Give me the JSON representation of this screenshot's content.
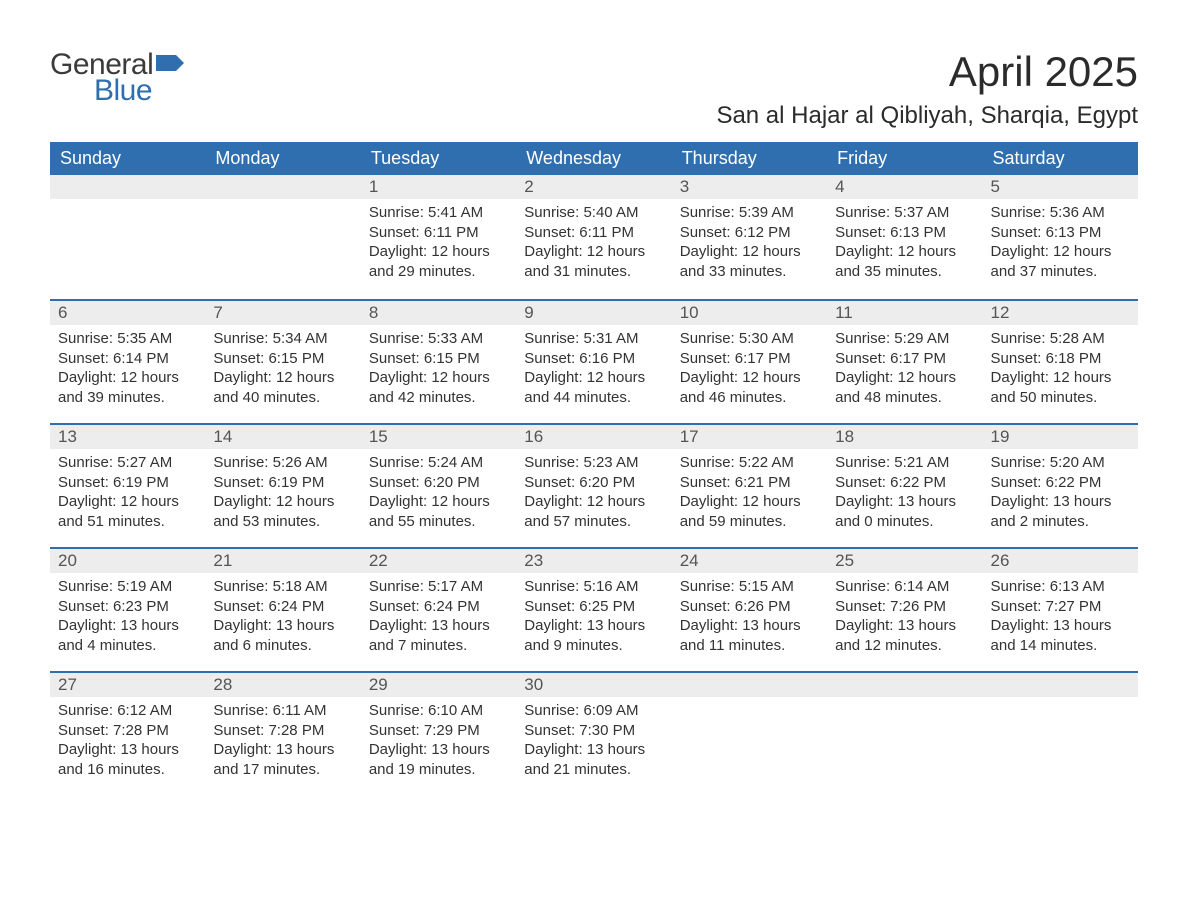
{
  "brand": {
    "part1": "General",
    "part2": "Blue"
  },
  "title": "April 2025",
  "location": "San al Hajar al Qibliyah, Sharqia, Egypt",
  "colors": {
    "header_bg": "#2f6fb0",
    "header_text": "#ffffff",
    "date_row_bg": "#ededed",
    "week_border": "#2f6fb0",
    "text": "#333333",
    "logo_blue": "#2f6fb0",
    "logo_gray": "#3b3b3b"
  },
  "typography": {
    "title_fontsize": 42,
    "location_fontsize": 24,
    "header_fontsize": 18,
    "date_fontsize": 17,
    "body_fontsize": 15
  },
  "day_headers": [
    "Sunday",
    "Monday",
    "Tuesday",
    "Wednesday",
    "Thursday",
    "Friday",
    "Saturday"
  ],
  "weeks": [
    [
      {
        "date": "",
        "sunrise": "",
        "sunset": "",
        "daylight": ""
      },
      {
        "date": "",
        "sunrise": "",
        "sunset": "",
        "daylight": ""
      },
      {
        "date": "1",
        "sunrise": "Sunrise: 5:41 AM",
        "sunset": "Sunset: 6:11 PM",
        "daylight": "Daylight: 12 hours and 29 minutes."
      },
      {
        "date": "2",
        "sunrise": "Sunrise: 5:40 AM",
        "sunset": "Sunset: 6:11 PM",
        "daylight": "Daylight: 12 hours and 31 minutes."
      },
      {
        "date": "3",
        "sunrise": "Sunrise: 5:39 AM",
        "sunset": "Sunset: 6:12 PM",
        "daylight": "Daylight: 12 hours and 33 minutes."
      },
      {
        "date": "4",
        "sunrise": "Sunrise: 5:37 AM",
        "sunset": "Sunset: 6:13 PM",
        "daylight": "Daylight: 12 hours and 35 minutes."
      },
      {
        "date": "5",
        "sunrise": "Sunrise: 5:36 AM",
        "sunset": "Sunset: 6:13 PM",
        "daylight": "Daylight: 12 hours and 37 minutes."
      }
    ],
    [
      {
        "date": "6",
        "sunrise": "Sunrise: 5:35 AM",
        "sunset": "Sunset: 6:14 PM",
        "daylight": "Daylight: 12 hours and 39 minutes."
      },
      {
        "date": "7",
        "sunrise": "Sunrise: 5:34 AM",
        "sunset": "Sunset: 6:15 PM",
        "daylight": "Daylight: 12 hours and 40 minutes."
      },
      {
        "date": "8",
        "sunrise": "Sunrise: 5:33 AM",
        "sunset": "Sunset: 6:15 PM",
        "daylight": "Daylight: 12 hours and 42 minutes."
      },
      {
        "date": "9",
        "sunrise": "Sunrise: 5:31 AM",
        "sunset": "Sunset: 6:16 PM",
        "daylight": "Daylight: 12 hours and 44 minutes."
      },
      {
        "date": "10",
        "sunrise": "Sunrise: 5:30 AM",
        "sunset": "Sunset: 6:17 PM",
        "daylight": "Daylight: 12 hours and 46 minutes."
      },
      {
        "date": "11",
        "sunrise": "Sunrise: 5:29 AM",
        "sunset": "Sunset: 6:17 PM",
        "daylight": "Daylight: 12 hours and 48 minutes."
      },
      {
        "date": "12",
        "sunrise": "Sunrise: 5:28 AM",
        "sunset": "Sunset: 6:18 PM",
        "daylight": "Daylight: 12 hours and 50 minutes."
      }
    ],
    [
      {
        "date": "13",
        "sunrise": "Sunrise: 5:27 AM",
        "sunset": "Sunset: 6:19 PM",
        "daylight": "Daylight: 12 hours and 51 minutes."
      },
      {
        "date": "14",
        "sunrise": "Sunrise: 5:26 AM",
        "sunset": "Sunset: 6:19 PM",
        "daylight": "Daylight: 12 hours and 53 minutes."
      },
      {
        "date": "15",
        "sunrise": "Sunrise: 5:24 AM",
        "sunset": "Sunset: 6:20 PM",
        "daylight": "Daylight: 12 hours and 55 minutes."
      },
      {
        "date": "16",
        "sunrise": "Sunrise: 5:23 AM",
        "sunset": "Sunset: 6:20 PM",
        "daylight": "Daylight: 12 hours and 57 minutes."
      },
      {
        "date": "17",
        "sunrise": "Sunrise: 5:22 AM",
        "sunset": "Sunset: 6:21 PM",
        "daylight": "Daylight: 12 hours and 59 minutes."
      },
      {
        "date": "18",
        "sunrise": "Sunrise: 5:21 AM",
        "sunset": "Sunset: 6:22 PM",
        "daylight": "Daylight: 13 hours and 0 minutes."
      },
      {
        "date": "19",
        "sunrise": "Sunrise: 5:20 AM",
        "sunset": "Sunset: 6:22 PM",
        "daylight": "Daylight: 13 hours and 2 minutes."
      }
    ],
    [
      {
        "date": "20",
        "sunrise": "Sunrise: 5:19 AM",
        "sunset": "Sunset: 6:23 PM",
        "daylight": "Daylight: 13 hours and 4 minutes."
      },
      {
        "date": "21",
        "sunrise": "Sunrise: 5:18 AM",
        "sunset": "Sunset: 6:24 PM",
        "daylight": "Daylight: 13 hours and 6 minutes."
      },
      {
        "date": "22",
        "sunrise": "Sunrise: 5:17 AM",
        "sunset": "Sunset: 6:24 PM",
        "daylight": "Daylight: 13 hours and 7 minutes."
      },
      {
        "date": "23",
        "sunrise": "Sunrise: 5:16 AM",
        "sunset": "Sunset: 6:25 PM",
        "daylight": "Daylight: 13 hours and 9 minutes."
      },
      {
        "date": "24",
        "sunrise": "Sunrise: 5:15 AM",
        "sunset": "Sunset: 6:26 PM",
        "daylight": "Daylight: 13 hours and 11 minutes."
      },
      {
        "date": "25",
        "sunrise": "Sunrise: 6:14 AM",
        "sunset": "Sunset: 7:26 PM",
        "daylight": "Daylight: 13 hours and 12 minutes."
      },
      {
        "date": "26",
        "sunrise": "Sunrise: 6:13 AM",
        "sunset": "Sunset: 7:27 PM",
        "daylight": "Daylight: 13 hours and 14 minutes."
      }
    ],
    [
      {
        "date": "27",
        "sunrise": "Sunrise: 6:12 AM",
        "sunset": "Sunset: 7:28 PM",
        "daylight": "Daylight: 13 hours and 16 minutes."
      },
      {
        "date": "28",
        "sunrise": "Sunrise: 6:11 AM",
        "sunset": "Sunset: 7:28 PM",
        "daylight": "Daylight: 13 hours and 17 minutes."
      },
      {
        "date": "29",
        "sunrise": "Sunrise: 6:10 AM",
        "sunset": "Sunset: 7:29 PM",
        "daylight": "Daylight: 13 hours and 19 minutes."
      },
      {
        "date": "30",
        "sunrise": "Sunrise: 6:09 AM",
        "sunset": "Sunset: 7:30 PM",
        "daylight": "Daylight: 13 hours and 21 minutes."
      },
      {
        "date": "",
        "sunrise": "",
        "sunset": "",
        "daylight": ""
      },
      {
        "date": "",
        "sunrise": "",
        "sunset": "",
        "daylight": ""
      },
      {
        "date": "",
        "sunrise": "",
        "sunset": "",
        "daylight": ""
      }
    ]
  ]
}
